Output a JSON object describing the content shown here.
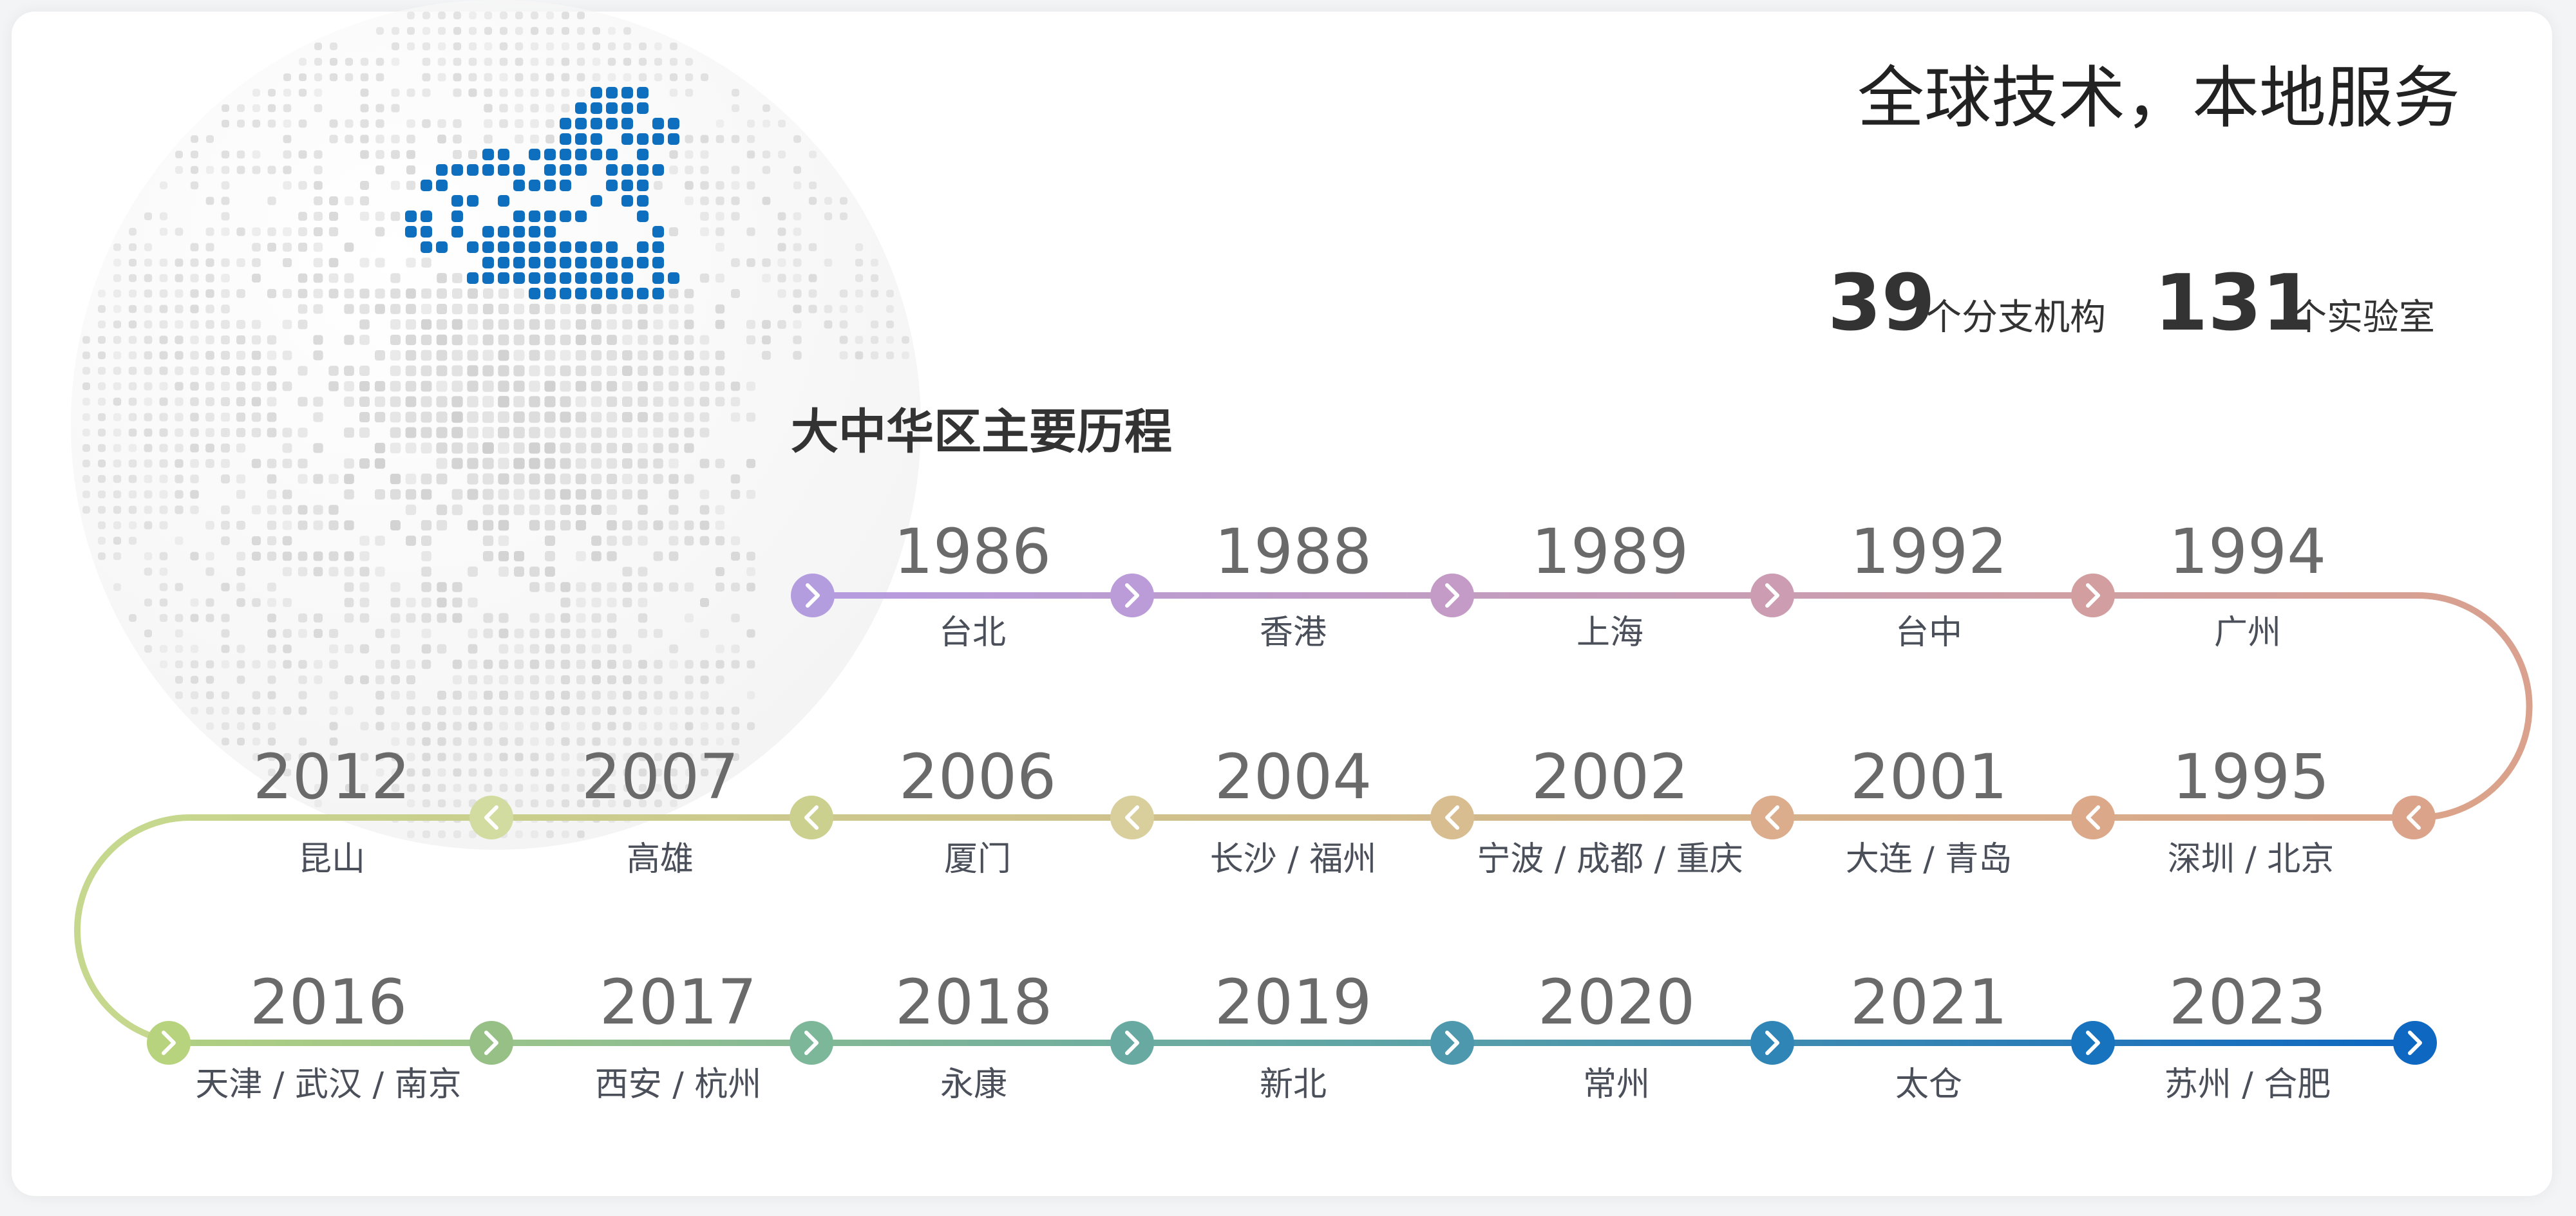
{
  "header": {
    "headline": "全球技术，本地服务",
    "branches_count": "39",
    "branches_label": "个分支机构",
    "labs_count": "131",
    "labs_label": "个实验室"
  },
  "timeline": {
    "title": "大中华区主要历程",
    "rows": [
      [
        {
          "year": "1986",
          "city": "台北"
        },
        {
          "year": "1988",
          "city": "香港"
        },
        {
          "year": "1989",
          "city": "上海"
        },
        {
          "year": "1992",
          "city": "台中"
        },
        {
          "year": "1994",
          "city": "广州"
        }
      ],
      [
        {
          "year": "2012",
          "city": "昆山"
        },
        {
          "year": "2007",
          "city": "高雄"
        },
        {
          "year": "2006",
          "city": "厦门"
        },
        {
          "year": "2004",
          "city": "长沙 / 福州"
        },
        {
          "year": "2002",
          "city": "宁波 / 成都 / 重庆"
        },
        {
          "year": "2001",
          "city": "大连 / 青岛"
        },
        {
          "year": "1995",
          "city": "深圳 / 北京"
        }
      ],
      [
        {
          "year": "2016",
          "city": "天津 / 武汉 / 南京"
        },
        {
          "year": "2017",
          "city": "西安 / 杭州"
        },
        {
          "year": "2018",
          "city": "永康"
        },
        {
          "year": "2019",
          "city": "新北"
        },
        {
          "year": "2020",
          "city": "常州"
        },
        {
          "year": "2021",
          "city": "太仓"
        },
        {
          "year": "2023",
          "city": "苏州 / 合肥"
        }
      ]
    ]
  },
  "colors": {
    "highlight_blue": "#0f6fbf",
    "globe_dots": "#d6d6d6",
    "row1_start": "#b59be0",
    "row1_end": "#d8a090",
    "row2_start": "#c6d88e",
    "row2_end": "#dba38a",
    "row3_start": "#b7d37e",
    "row3_end": "#0e67c0"
  },
  "icons": {
    "forward_node": "chevron-right-icon",
    "backward_node": "chevron-left-icon",
    "globe": "world-globe-icon"
  }
}
